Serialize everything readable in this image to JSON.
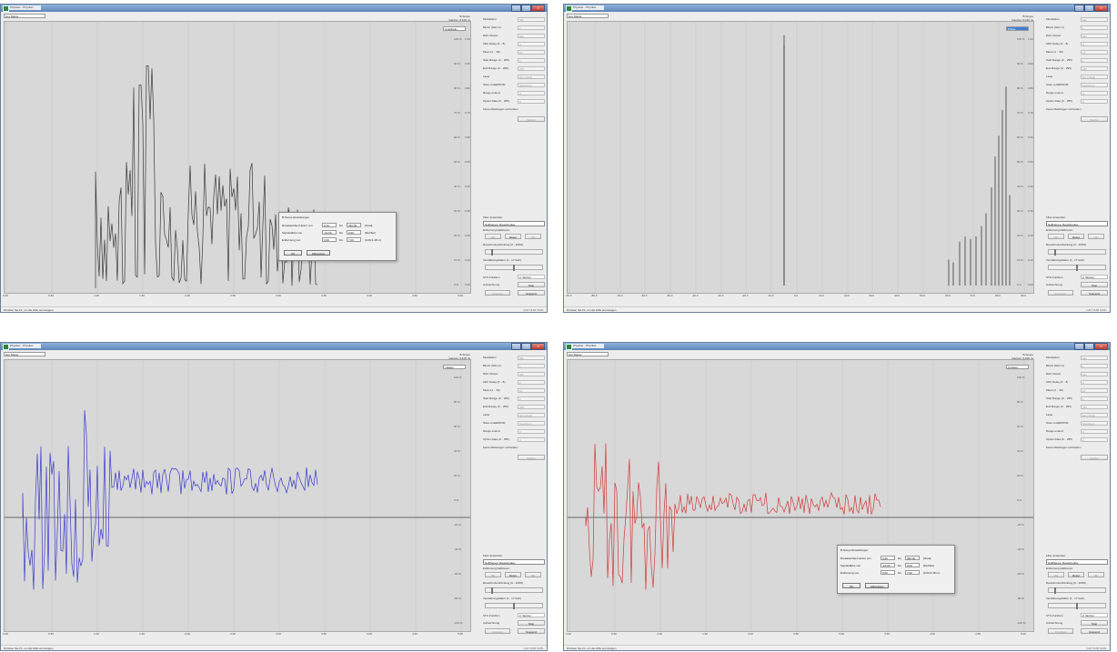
{
  "titlebar": {
    "title": "Physiker - Physiker",
    "min": "–",
    "max": "□",
    "close": "×"
  },
  "device_select": "bus Status",
  "scope": {
    "line1": "B-Scope",
    "line2": "Ganzes: 0-100 ns"
  },
  "panel": {
    "rows": [
      {
        "label": "Modulation",
        "value": "Mix"
      },
      {
        "label": "Binsiz (GHz in)",
        "value": "1"
      },
      {
        "label": "DAC Output",
        "value": "Mix"
      },
      {
        "label": "ADC Delay (0 .. 8)",
        "value": "0"
      },
      {
        "label": "Mean (1 .. 30)",
        "value": "10"
      },
      {
        "label": "Start Range (0 .. 255)",
        "value": "1"
      },
      {
        "label": "End Range (0 .. 255)",
        "value": "255"
      },
      {
        "label": "Laser",
        "value": "Ein ruhelig"
      },
      {
        "label": "Store to EEPROM",
        "value": "Speichern"
      },
      {
        "label": "Range extend",
        "value": "0"
      },
      {
        "label": "Option Data (0 .. 255)",
        "value": "0"
      }
    ],
    "note": "Keine Meldungen vorhanden",
    "apply_button": "Setzen"
  },
  "lower": {
    "filter_label": "Filter anwenden",
    "filter_value": "Nullframes: Rauschpulse",
    "calib_label": "Entfernung kalibrieren",
    "left_button": "<<",
    "reset_button": "Reset",
    "right_button": ">>",
    "noise_label": "Rauschunterdrückung (0 - 100%)",
    "gain_label": "Verstärkungsfaktor (1 - 17 fach)",
    "stc_label": "STC-Funktion",
    "stc_value": "2. Wurzel",
    "record_label": "Aufzeichnung",
    "stop_button": "Stop",
    "display_button": "Anzeigen",
    "suspend_button": "Suspend"
  },
  "status": {
    "text": "Drücken Sie F1, um die Hilfe anzuzeigen.",
    "right": "CAP  NUM  SCRL"
  },
  "dialog": {
    "title": "B-Scope Einstellungen",
    "rows": [
      {
        "label": "Dreiekswinkel Heizer von",
        "from": "0.00",
        "to": "360.00",
        "unit": "[Grad]"
      },
      {
        "label": "Signalstärke von",
        "from": "-10.00",
        "to": "0.00",
        "unit": "[Dezibel]"
      },
      {
        "label": "Entfernung von",
        "from": "0.00",
        "to": "7.00",
        "unit": "[0.00-9.48 m]"
      }
    ],
    "bis": "bis",
    "ok": "OK",
    "cancel": "Abbrechen"
  },
  "views": [
    {
      "mode": "Amplitude",
      "mode_selected": false,
      "color": "#3a3a3a",
      "xticks": [
        "0.00",
        "0.50",
        "1.00",
        "1.50",
        "2.00",
        "2.50",
        "3.00",
        "3.50",
        "4.00",
        "4.50",
        "5.00"
      ],
      "yticks": [
        "100 %",
        "90 %",
        "80 %",
        "70 %",
        "60 %",
        "50 %",
        "40 %",
        "30 %",
        "20 %",
        "10 %",
        "0 %"
      ],
      "ymid": [
        "1.00",
        "0.90",
        "0.80",
        "0.70",
        "0.60",
        "0.50",
        "0.40",
        "0.30",
        "0.20",
        "0.10",
        "0.00"
      ]
    },
    {
      "mode": "Phase",
      "mode_selected": true,
      "color": "#3a3a3a",
      "xticks": [
        "-90.0",
        "-80.0",
        "-70.0",
        "-60.0",
        "-50.0",
        "-40.0",
        "-30.0",
        "-20.0",
        "-10.0",
        "0.0",
        "10.0",
        "20.0",
        "30.0",
        "40.0",
        "50.0",
        "60.0",
        "70.0",
        "80.0",
        "90.0"
      ],
      "yticks": [
        "100 %",
        "90 %",
        "80 %",
        "70 %",
        "60 %",
        "50 %",
        "40 %",
        "30 %",
        "20 %",
        "10 %",
        "0 %"
      ],
      "ymid": [
        "1.00",
        "0.90",
        "0.80",
        "0.70",
        "0.60",
        "0.50",
        "0.40",
        "0.30",
        "0.20",
        "0.10",
        "0.00"
      ]
    },
    {
      "mode": "I-Daten",
      "mode_selected": false,
      "color": "#3a3ad0",
      "xticks": [
        "0.00",
        "0.50",
        "1.00",
        "1.50",
        "2.00",
        "2.50",
        "3.00",
        "3.50",
        "4.00",
        "4.50",
        "5.00"
      ],
      "yticks": [
        "100 %",
        "80 %",
        "60 %",
        "40 %",
        "20 %",
        "0 %",
        "-20 %",
        "-40 %",
        "-60 %",
        "-80 %",
        "-100 %"
      ],
      "ymid": []
    },
    {
      "mode": "Q-Daten",
      "mode_selected": false,
      "color": "#d43a3a",
      "xticks": [
        "0.00",
        "0.50",
        "1.00",
        "1.50",
        "2.00",
        "2.50",
        "3.00",
        "3.50",
        "4.00",
        "4.50",
        "5.00"
      ],
      "yticks": [
        "100 %",
        "80 %",
        "60 %",
        "40 %",
        "20 %",
        "0 %",
        "-20 %",
        "-40 %",
        "-60 %",
        "-80 %",
        "-100 %"
      ],
      "ymid": []
    }
  ]
}
